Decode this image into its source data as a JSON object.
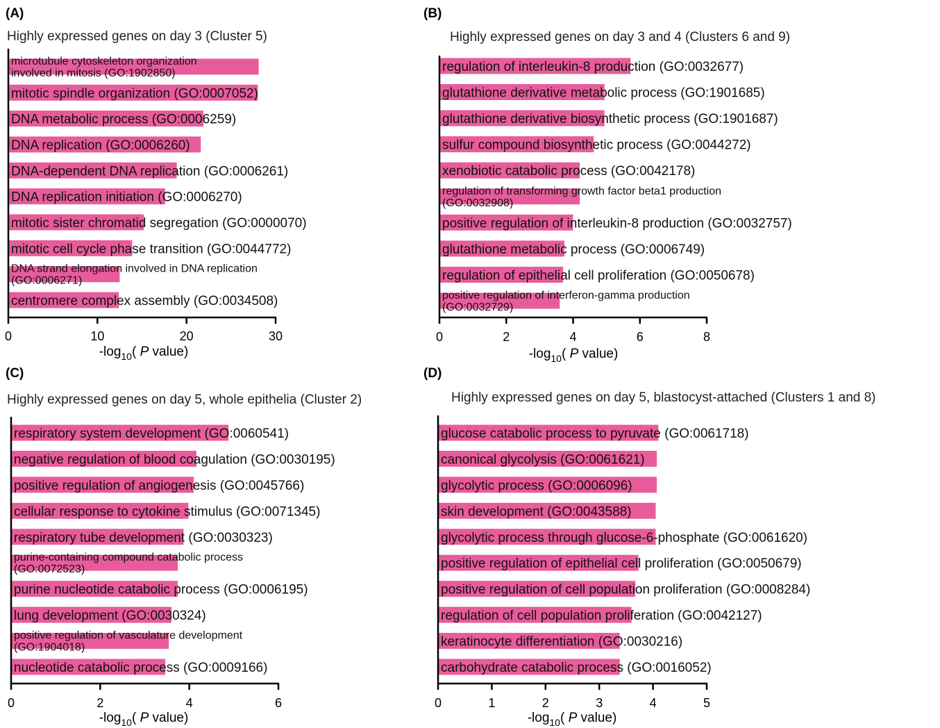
{
  "chart_data": [
    {
      "type": "bar",
      "orientation": "horizontal",
      "panel": "(A)",
      "title": "Highly expressed genes on day 3 (Cluster 5)",
      "xlabel": {
        "pre": "-log",
        "sub": "10",
        "mid": "( ",
        "italic": "P",
        "post": "  value)"
      },
      "xlim": [
        0,
        30
      ],
      "xticks": [
        0,
        10,
        20,
        30
      ],
      "categories": [
        [
          "microtubule cytoskeleton organization",
          "involved in mitosis (GO:1902850)"
        ],
        [
          "mitotic spindle organization (GO:0007052)"
        ],
        [
          "DNA metabolic process (GO:0006259)"
        ],
        [
          "DNA replication (GO:0006260)"
        ],
        [
          "DNA-dependent DNA replication (GO:0006261)"
        ],
        [
          "DNA replication initiation (GO:0006270)"
        ],
        [
          "mitotic sister chromatid segregation (GO:0000070)"
        ],
        [
          "mitotic cell cycle phase transition (GO:0044772)"
        ],
        [
          "DNA strand elongation involved in DNA replication",
          "(GO:0006271)"
        ],
        [
          "centromere complex assembly (GO:0034508)"
        ]
      ],
      "values": [
        28.1,
        28.0,
        21.9,
        21.6,
        18.9,
        17.6,
        15.2,
        13.9,
        12.5,
        12.4
      ]
    },
    {
      "type": "bar",
      "orientation": "horizontal",
      "panel": "(B)",
      "title": "Highly expressed genes on day 3 and 4 (Clusters 6 and 9)",
      "xlabel": {
        "pre": "-log",
        "sub": "10",
        "mid": "( ",
        "italic": "P",
        "post": "  value)"
      },
      "xlim": [
        0,
        8
      ],
      "xticks": [
        0,
        2,
        4,
        6,
        8
      ],
      "categories": [
        [
          "regulation of interleukin-8 production (GO:0032677)"
        ],
        [
          "glutathione derivative metabolic process (GO:1901685)"
        ],
        [
          "glutathione derivative biosynthetic process (GO:1901687)"
        ],
        [
          "sulfur compound biosynthetic process (GO:0044272)"
        ],
        [
          "xenobiotic catabolic process (GO:0042178)"
        ],
        [
          "regulation of transforming growth factor beta1 production",
          "(GO:0032908)"
        ],
        [
          "positive regulation of interleukin-8 production (GO:0032757)"
        ],
        [
          "glutathione metabolic process (GO:0006749)"
        ],
        [
          "regulation of epithelial cell proliferation (GO:0050678)"
        ],
        [
          "positive regulation of interferon-gamma production",
          "(GO:0032729)"
        ]
      ],
      "values": [
        5.72,
        4.94,
        4.94,
        4.62,
        4.2,
        4.2,
        4.0,
        3.74,
        3.7,
        3.6
      ]
    },
    {
      "type": "bar",
      "orientation": "horizontal",
      "panel": "(C)",
      "title": "Highly expressed genes on day 5, whole epithelia (Cluster 2)",
      "xlabel": {
        "pre": "-log",
        "sub": "10",
        "mid": "( ",
        "italic": "P",
        "post": "  value)"
      },
      "xlim": [
        0,
        6
      ],
      "xticks": [
        0,
        2,
        4,
        6
      ],
      "categories": [
        [
          "respiratory system development (GO:0060541)"
        ],
        [
          "negative regulation of blood coagulation (GO:0030195)"
        ],
        [
          "positive regulation of angiogenesis (GO:0045766)"
        ],
        [
          "cellular response to cytokine stimulus (GO:0071345)"
        ],
        [
          "respiratory tube development (GO:0030323)"
        ],
        [
          "purine-containing compound catabolic process",
          "(GO:0072523)"
        ],
        [
          "purine nucleotide catabolic process (GO:0006195)"
        ],
        [
          "lung development (GO:0030324)"
        ],
        [
          "positive regulation of vasculature development",
          "(GO:1904018)"
        ],
        [
          "nucleotide catabolic process (GO:0009166)"
        ]
      ],
      "values": [
        4.88,
        4.16,
        4.1,
        3.98,
        3.87,
        3.74,
        3.74,
        3.6,
        3.54,
        3.46
      ]
    },
    {
      "type": "bar",
      "orientation": "horizontal",
      "panel": "(D)",
      "title": "Highly expressed genes on day 5, blastocyst-attached (Clusters 1 and 8)",
      "xlabel": {
        "pre": "-log",
        "sub": "10",
        "mid": "( ",
        "italic": "P",
        "post": "  value)"
      },
      "xlim": [
        0,
        5
      ],
      "xticks": [
        0,
        1,
        2,
        3,
        4,
        5
      ],
      "categories": [
        [
          "glucose catabolic process to pyruvate (GO:0061718)"
        ],
        [
          "canonical glycolysis (GO:0061621)"
        ],
        [
          "glycolytic process (GO:0006096)"
        ],
        [
          "skin development (GO:0043588)"
        ],
        [
          "glycolytic process through glucose-6-phosphate (GO:0061620)"
        ],
        [
          "positive regulation of epithelial cell proliferation (GO:0050679)"
        ],
        [
          "positive regulation of cell population proliferation (GO:0008284)"
        ],
        [
          "regulation of cell population proliferation (GO:0042127)"
        ],
        [
          "keratinocyte differentiation (GO:0030216)"
        ],
        [
          "carbohydrate catabolic process (GO:0016052)"
        ]
      ],
      "values": [
        4.1,
        4.07,
        4.07,
        4.05,
        4.05,
        3.73,
        3.67,
        3.6,
        3.38,
        3.38
      ]
    }
  ],
  "colors": {
    "bar": "#e85c9b",
    "axis": "#000000"
  }
}
